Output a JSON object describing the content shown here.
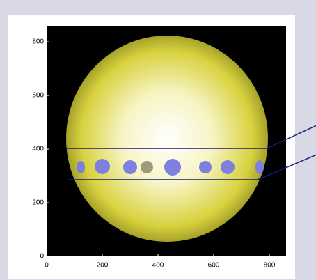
{
  "chart_data": {
    "type": "image",
    "xlim": [
      0,
      860
    ],
    "ylim": [
      0,
      860
    ],
    "xticks": [
      0,
      200,
      400,
      600,
      800
    ],
    "yticks": [
      0,
      200,
      400,
      600,
      800
    ]
  }
}
